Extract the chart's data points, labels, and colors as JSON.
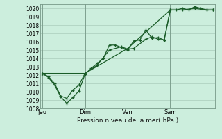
{
  "title": "",
  "xlabel": "Pression niveau de la mer( hPa )",
  "ylabel": "",
  "bg_color": "#cceedd",
  "grid_color": "#aaccbb",
  "line_color": "#1a5c28",
  "ylim": [
    1008,
    1020.5
  ],
  "xtick_labels": [
    "Jeu",
    "Dim",
    "Ven",
    "Sam"
  ],
  "xtick_positions": [
    0,
    3.5,
    7.0,
    10.5
  ],
  "vlines": [
    0,
    3.5,
    7.0,
    10.5
  ],
  "series1_x": [
    0,
    0.5,
    1.0,
    1.5,
    2.0,
    2.5,
    3.0,
    3.5,
    4.0,
    4.5,
    5.0,
    5.5,
    6.0,
    6.5,
    7.0,
    7.5,
    8.0,
    8.5,
    9.0,
    9.5,
    10.0,
    10.5,
    11.0,
    11.5,
    12.0,
    12.5,
    13.0,
    13.5,
    14.0
  ],
  "series1_y": [
    1012.2,
    1011.7,
    1010.8,
    1009.4,
    1008.6,
    1009.3,
    1010.1,
    1012.1,
    1012.8,
    1013.4,
    1014.0,
    1015.6,
    1015.6,
    1015.3,
    1015.0,
    1016.1,
    1016.2,
    1017.4,
    1016.4,
    1016.5,
    1016.2,
    1019.8,
    1019.8,
    1020.0,
    1019.8,
    1020.2,
    1020.0,
    1019.8,
    1019.8
  ],
  "series2_x": [
    0,
    0.5,
    1.0,
    1.5,
    2.0,
    2.5,
    3.0,
    3.5,
    4.5,
    5.5,
    6.5,
    7.0,
    7.5,
    8.5,
    9.0,
    9.5,
    10.0,
    10.5,
    11.5,
    12.5,
    13.5,
    14.0
  ],
  "series2_y": [
    1012.2,
    1011.8,
    1011.0,
    1009.5,
    1009.2,
    1010.2,
    1010.8,
    1012.2,
    1013.2,
    1015.0,
    1015.4,
    1015.1,
    1015.2,
    1016.3,
    1016.6,
    1016.3,
    1016.2,
    1019.8,
    1019.8,
    1020.0,
    1019.8,
    1019.8
  ],
  "series3_x": [
    0,
    3.5,
    7.0,
    10.5,
    14.0
  ],
  "series3_y": [
    1012.2,
    1012.2,
    1015.2,
    1019.8,
    1019.8
  ],
  "figsize": [
    3.2,
    2.0
  ],
  "dpi": 100
}
